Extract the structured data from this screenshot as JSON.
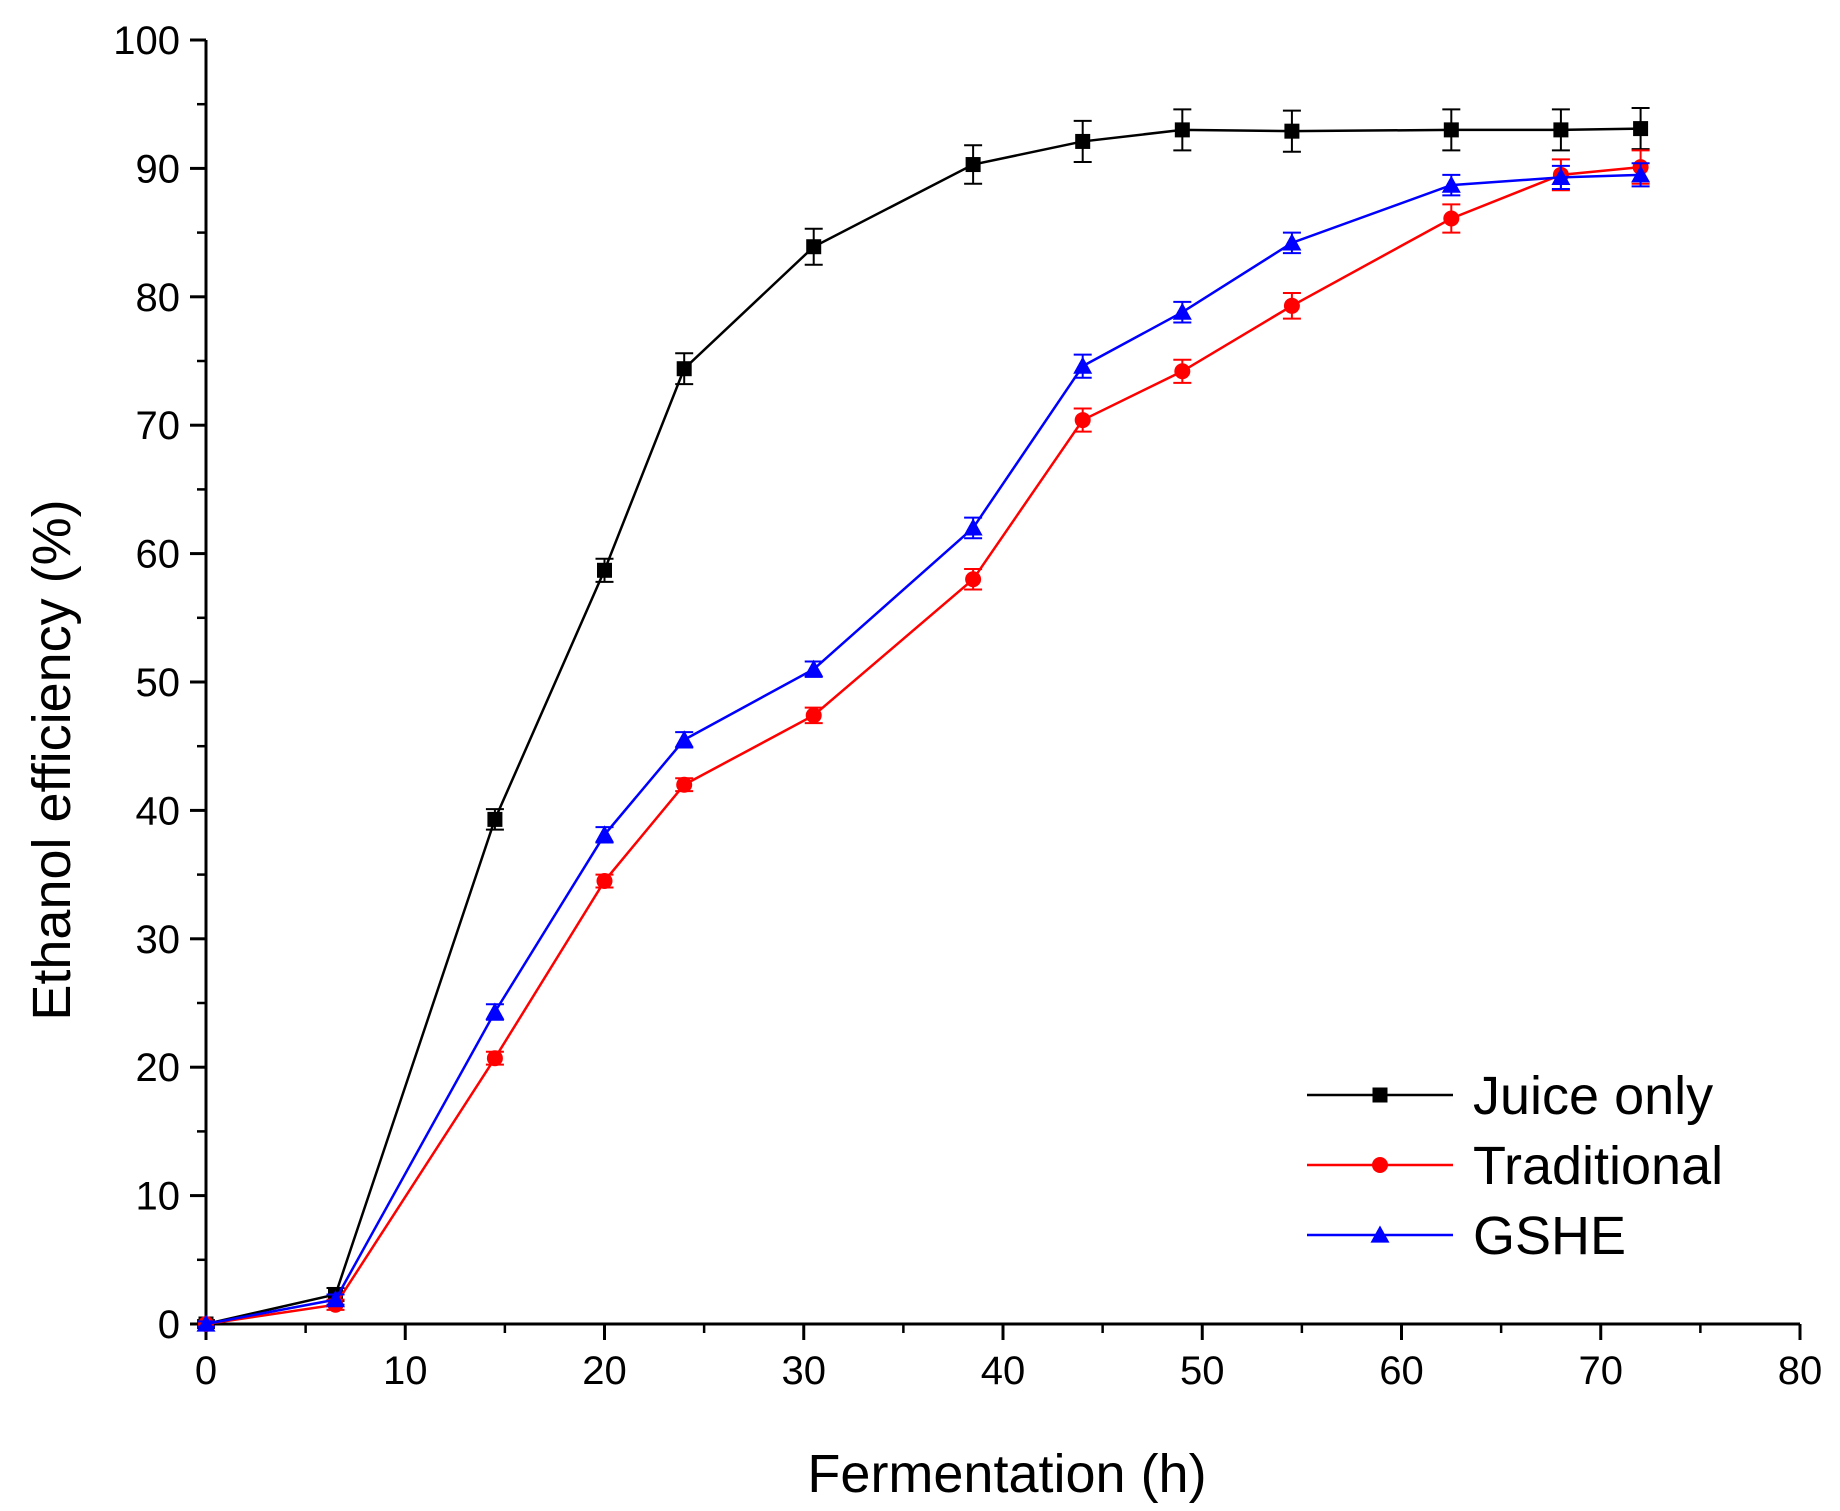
{
  "chart_data": {
    "type": "line",
    "title": "",
    "xlabel": "Fermentation (h)",
    "ylabel": "Ethanol efficiency (%)",
    "xlim": [
      0,
      80
    ],
    "ylim": [
      0,
      100
    ],
    "xticks": [
      0,
      10,
      20,
      30,
      40,
      50,
      60,
      70,
      80
    ],
    "yticks": [
      0,
      10,
      20,
      30,
      40,
      50,
      60,
      70,
      80,
      90,
      100
    ],
    "grid": false,
    "legend_position": "bottom-right",
    "series": [
      {
        "name": "Juice only",
        "color": "#000000",
        "marker": "square",
        "x": [
          0,
          6.5,
          14.5,
          20,
          24,
          30.5,
          38.5,
          44,
          49,
          54.5,
          62.5,
          68,
          72
        ],
        "y": [
          0,
          2.3,
          39.3,
          58.7,
          74.4,
          83.9,
          90.3,
          92.1,
          93.0,
          92.9,
          93.0,
          93.0,
          93.1
        ],
        "err": [
          0.3,
          0.5,
          0.8,
          0.9,
          1.2,
          1.4,
          1.5,
          1.6,
          1.6,
          1.6,
          1.6,
          1.6,
          1.6
        ]
      },
      {
        "name": "Traditional",
        "color": "#ff0000",
        "marker": "circle",
        "x": [
          0,
          6.5,
          14.5,
          20,
          24,
          30.5,
          38.5,
          44,
          49,
          54.5,
          62.5,
          68,
          72
        ],
        "y": [
          0,
          1.5,
          20.7,
          34.5,
          42.0,
          47.4,
          58.0,
          70.4,
          74.2,
          79.3,
          86.1,
          89.5,
          90.1
        ],
        "err": [
          0.2,
          0.4,
          0.5,
          0.5,
          0.5,
          0.6,
          0.8,
          0.9,
          0.9,
          1.0,
          1.1,
          1.2,
          1.3
        ]
      },
      {
        "name": "GSHE",
        "color": "#0000ff",
        "marker": "triangle",
        "x": [
          0,
          6.5,
          14.5,
          20,
          24,
          30.5,
          38.5,
          44,
          49,
          54.5,
          62.5,
          68,
          72
        ],
        "y": [
          0,
          1.9,
          24.3,
          38.1,
          45.5,
          51.0,
          62.0,
          74.6,
          78.8,
          84.2,
          88.7,
          89.3,
          89.5
        ],
        "err": [
          0.2,
          0.4,
          0.6,
          0.6,
          0.6,
          0.6,
          0.8,
          0.9,
          0.8,
          0.8,
          0.8,
          0.9,
          0.9
        ]
      }
    ]
  }
}
